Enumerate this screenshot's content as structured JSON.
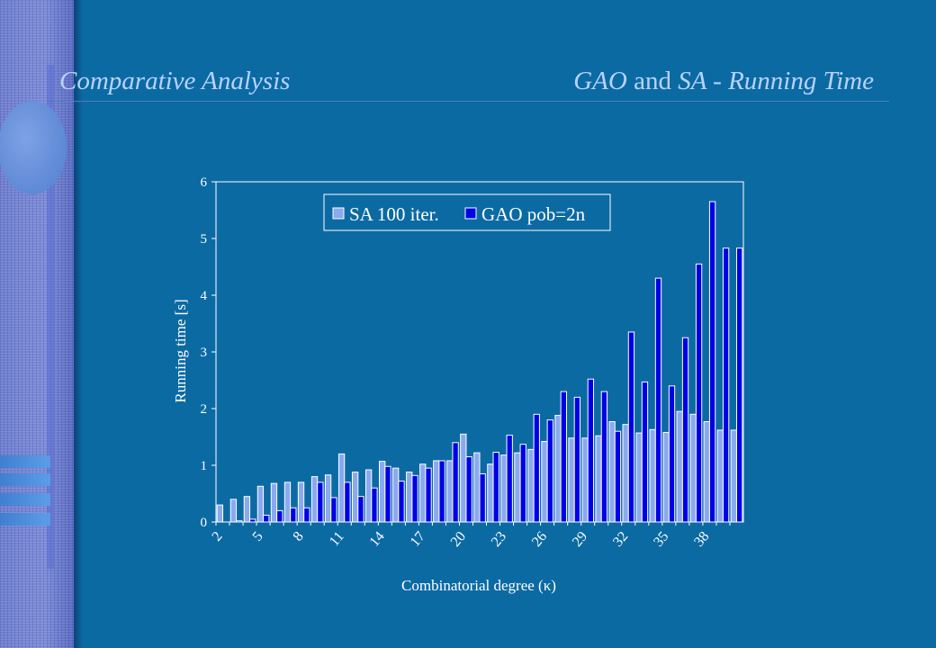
{
  "header": {
    "left_title": "Comparative Analysis",
    "right_title_part1": "GAO",
    "right_title_part2": " and ",
    "right_title_part3": "SA - Running Time"
  },
  "colors": {
    "background": "#0c6aa3",
    "sa_bar": "#8aa9f0",
    "gao_bar": "#0000e6",
    "text": "#ffffff",
    "title": "#b8d3ff"
  },
  "chart_data": {
    "type": "bar",
    "ylabel": "Running time [s]",
    "xlabel": "Combinatorial degree (κ)",
    "ylim": [
      0,
      6
    ],
    "yticks": [
      0,
      1,
      2,
      3,
      4,
      5,
      6
    ],
    "grid": false,
    "legend_position": "top",
    "categories": [
      2,
      3,
      4,
      5,
      6,
      7,
      8,
      9,
      10,
      11,
      12,
      13,
      14,
      15,
      16,
      17,
      18,
      19,
      20,
      21,
      22,
      23,
      24,
      25,
      26,
      27,
      28,
      29,
      30,
      31,
      32,
      33,
      34,
      35,
      36,
      37,
      38,
      39,
      40
    ],
    "tick_labels": [
      "2",
      "5",
      "8",
      "11",
      "14",
      "17",
      "20",
      "23",
      "26",
      "29",
      "32",
      "35",
      "38"
    ],
    "series": [
      {
        "name": "SA 100 iter.",
        "values": [
          0.3,
          0.4,
          0.45,
          0.63,
          0.68,
          0.7,
          0.7,
          0.8,
          0.83,
          1.2,
          0.88,
          0.92,
          1.07,
          0.95,
          0.88,
          1.02,
          1.08,
          1.08,
          1.55,
          1.22,
          1.02,
          1.18,
          1.22,
          1.28,
          1.42,
          1.88,
          1.48,
          1.48,
          1.52,
          1.77,
          1.72,
          1.57,
          1.63,
          1.58,
          1.95,
          1.9,
          1.77,
          1.62,
          1.62
        ]
      },
      {
        "name": "GAO pob=2n",
        "values": [
          0.0,
          0.02,
          0.05,
          0.12,
          0.2,
          0.25,
          0.25,
          0.7,
          0.43,
          0.7,
          0.45,
          0.6,
          0.98,
          0.72,
          0.82,
          0.95,
          1.08,
          1.4,
          1.15,
          0.85,
          1.23,
          1.53,
          1.37,
          1.9,
          1.8,
          2.3,
          2.2,
          2.52,
          2.3,
          1.6,
          3.35,
          2.47,
          4.3,
          2.4,
          3.25,
          4.55,
          5.65,
          4.83,
          4.83
        ]
      }
    ]
  }
}
